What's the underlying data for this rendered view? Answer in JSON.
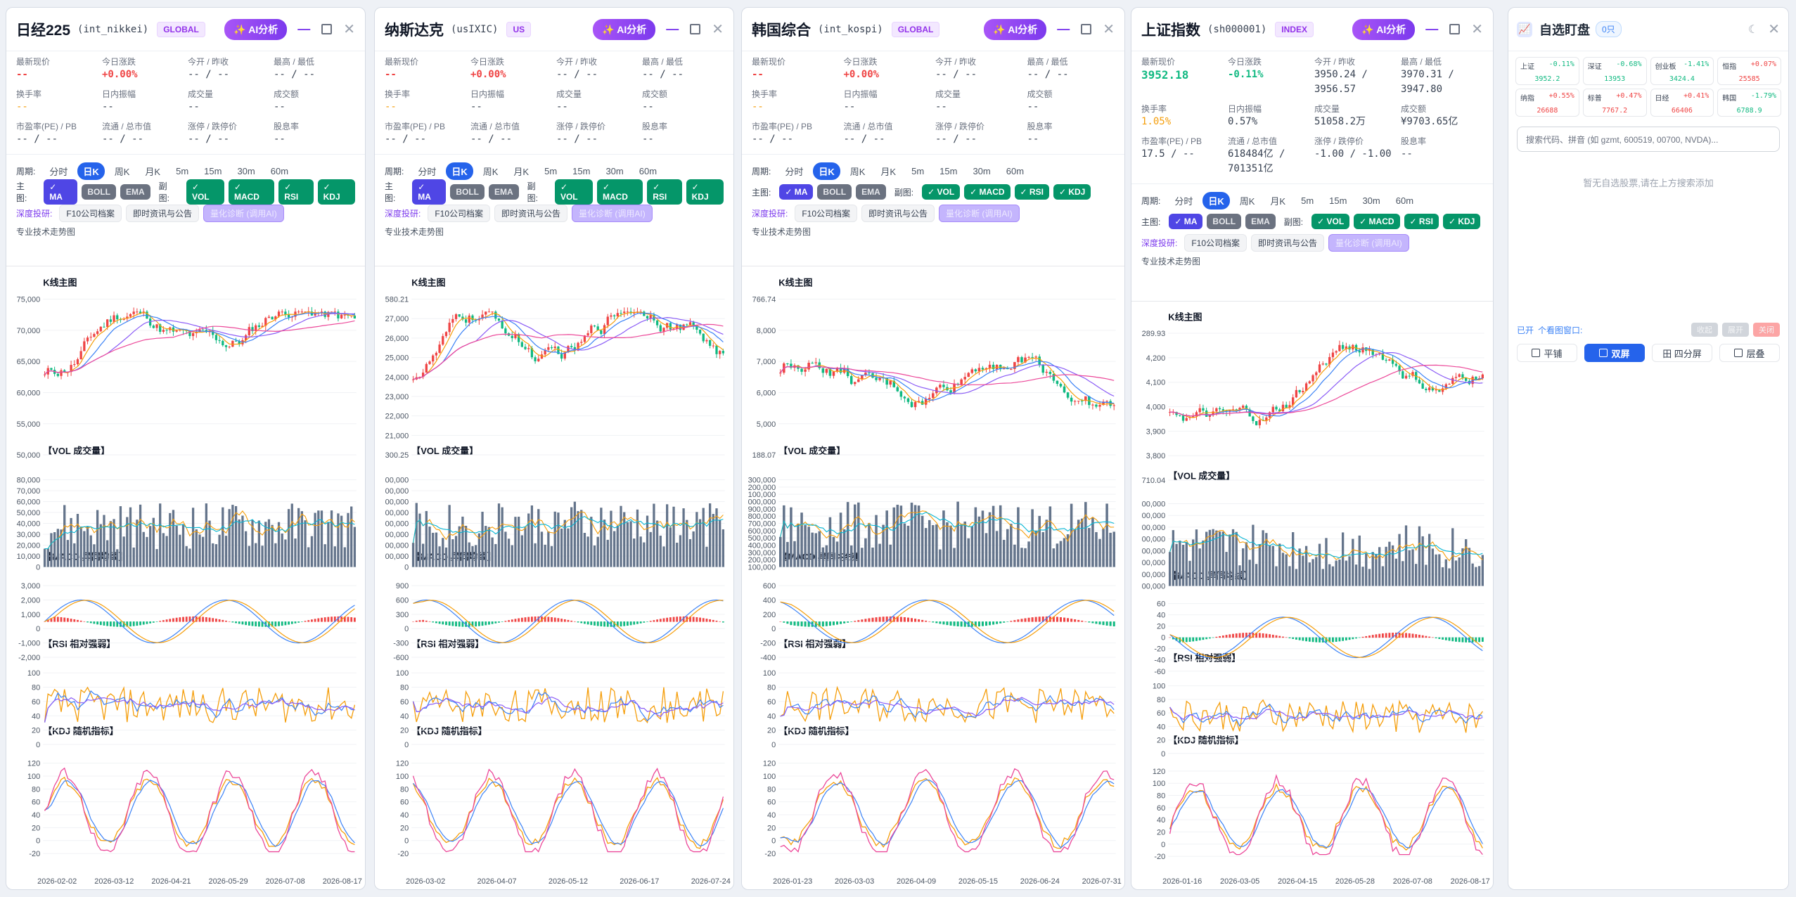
{
  "ai_label": "✨ AI分析",
  "stat_labels": [
    "最新现价",
    "今日涨跌",
    "今开 / 昨收",
    "最高 / 最低",
    "换手率",
    "日内振幅",
    "成交量",
    "成交额",
    "市盈率(PE) / PB",
    "流通 / 总市值",
    "涨停 / 跌停价",
    "股息率"
  ],
  "period_label": "周期:",
  "periods": [
    "分时",
    "日K",
    "周K",
    "月K",
    "5m",
    "15m",
    "30m",
    "60m"
  ],
  "main_label": "主图:",
  "sub_label": "副图:",
  "main_inds": [
    "✓ MA",
    "BOLL",
    "EMA"
  ],
  "sub_inds": [
    "✓ VOL",
    "✓ MACD",
    "✓ RSI",
    "✓ KDJ"
  ],
  "deep_label": "深度投研:",
  "deep_btns": [
    "F10公司档案",
    "即时资讯与公告",
    "量化诊断 (调用AI)"
  ],
  "pro_label": "专业技术走势图",
  "chart_titles": [
    "K线主图",
    "【VOL 成交量】",
    "【MACD 异同均线】",
    "【RSI 相对强弱】",
    "【KDJ 随机指标】"
  ],
  "panels": [
    {
      "title": "日经225",
      "code": "(int_nikkei)",
      "tag": "GLOBAL",
      "stats": [
        "--",
        "+0.00%",
        "-- / --",
        "-- / --",
        "--",
        "--",
        "--",
        "--",
        "-- / --",
        "-- / --",
        "-- / --",
        "--"
      ],
      "xdates": [
        "2026-02-02",
        "2026-03-12",
        "2026-04-21",
        "2026-05-29",
        "2026-07-08",
        "2026-08-17"
      ],
      "price_ticks": [
        "75,000",
        "70,000",
        "65,000",
        "60,000",
        "55,000",
        "50,000"
      ],
      "vol_ticks": [
        "80,000",
        "70,000",
        "60,000",
        "50,000",
        "40,000",
        "30,000",
        "20,000",
        "10,000",
        "0"
      ],
      "macd_ticks": [
        "3,000",
        "2,000",
        "1,000",
        "0",
        "-1,000",
        "-2,000"
      ],
      "rsi_ticks": [
        "100",
        "80",
        "60",
        "40",
        "20",
        "0"
      ],
      "kdj_ticks": [
        "120",
        "100",
        "80",
        "60",
        "40",
        "20",
        "0",
        "-20"
      ]
    },
    {
      "title": "纳斯达克",
      "code": "(usIXIC)",
      "tag": "US",
      "stats": [
        "--",
        "+0.00%",
        "-- / --",
        "-- / --",
        "--",
        "--",
        "--",
        "--",
        "-- / --",
        "-- / --",
        "-- / --",
        "--"
      ],
      "xdates": [
        "2026-03-02",
        "2026-04-07",
        "2026-05-12",
        "2026-06-17",
        "2026-07-24"
      ],
      "price_ticks": [
        "580.21",
        "27,000",
        "26,000",
        "25,000",
        "24,000",
        "23,000",
        "22,000",
        "21,000",
        "300.25"
      ],
      "vol_ticks": [
        "00,000",
        "00,000",
        "00,000",
        "00,000",
        "00,000",
        "00,000",
        "00,000",
        "00,000",
        "0"
      ],
      "macd_ticks": [
        "900",
        "600",
        "300",
        "0",
        "-300",
        "-600"
      ],
      "rsi_ticks": [
        "100",
        "80",
        "60",
        "40",
        "20",
        "0"
      ],
      "kdj_ticks": [
        "120",
        "100",
        "80",
        "60",
        "40",
        "20",
        "0",
        "-20"
      ]
    },
    {
      "title": "韩国综合",
      "code": "(int_kospi)",
      "tag": "GLOBAL",
      "stats": [
        "--",
        "+0.00%",
        "-- / --",
        "-- / --",
        "--",
        "--",
        "--",
        "--",
        "-- / --",
        "-- / --",
        "-- / --",
        "--"
      ],
      "xdates": [
        "2026-01-23",
        "2026-03-03",
        "2026-04-09",
        "2026-05-15",
        "2026-06-24",
        "2026-07-31"
      ],
      "price_ticks": [
        "766.74",
        "8,000",
        "7,000",
        "6,000",
        "5,000",
        "188.07"
      ],
      "vol_ticks": [
        "300,000",
        "200,000",
        "100,000",
        "000,000",
        "900,000",
        "800,000",
        "700,000",
        "600,000",
        "500,000",
        "400,000",
        "300,000",
        "200,000",
        "100,000"
      ],
      "macd_ticks": [
        "600",
        "400",
        "200",
        "0",
        "-200",
        "-400"
      ],
      "rsi_ticks": [
        "100",
        "80",
        "60",
        "40",
        "20",
        "0"
      ],
      "kdj_ticks": [
        "120",
        "100",
        "80",
        "60",
        "40",
        "20",
        "0",
        "-20"
      ]
    },
    {
      "title": "上证指数",
      "code": "(sh000001)",
      "tag": "INDEX",
      "stats": [
        "3952.18",
        "-0.11%",
        "3950.24 / 3956.57",
        "3970.31 / 3947.80",
        "1.05%",
        "0.57%",
        "51058.2万",
        "¥9703.65亿",
        "17.5 / --",
        "618484亿 / 701351亿",
        "-1.00 / -1.00",
        "--"
      ],
      "xdates": [
        "2026-01-16",
        "2026-03-05",
        "2026-04-15",
        "2026-05-28",
        "2026-07-08",
        "2026-08-17"
      ],
      "price_ticks": [
        "289.93",
        "4,200",
        "4,100",
        "4,000",
        "3,900",
        "3,800",
        "710.04"
      ],
      "vol_ticks": [
        "00,000",
        "00,000",
        "00,000",
        "00,000",
        "00,000",
        "00,000",
        "00,000",
        "00,000"
      ],
      "macd_ticks": [
        "60",
        "40",
        "20",
        "0",
        "-20",
        "-40",
        "-60"
      ],
      "rsi_ticks": [
        "100",
        "80",
        "60",
        "40",
        "20",
        "0"
      ],
      "kdj_ticks": [
        "120",
        "100",
        "80",
        "60",
        "40",
        "20",
        "0",
        "-20"
      ]
    }
  ],
  "watchlist": {
    "title": "自选盯盘",
    "count": "0只",
    "mini": [
      {
        "name": "上证",
        "pct": "-0.11%",
        "price": "3952.2",
        "dir": "dn"
      },
      {
        "name": "深证",
        "pct": "-0.68%",
        "price": "13953",
        "dir": "dn"
      },
      {
        "name": "创业板",
        "pct": "-1.41%",
        "price": "3424.4",
        "dir": "dn"
      },
      {
        "name": "恒指",
        "pct": "+0.07%",
        "price": "25585",
        "dir": "up"
      },
      {
        "name": "纳指",
        "pct": "+0.55%",
        "price": "26688",
        "dir": "up"
      },
      {
        "name": "标普",
        "pct": "+0.47%",
        "price": "7767.2",
        "dir": "up"
      },
      {
        "name": "日经",
        "pct": "+0.41%",
        "price": "66406",
        "dir": "up"
      },
      {
        "name": "韩国",
        "pct": "-1.79%",
        "price": "6788.9",
        "dir": "dn"
      }
    ],
    "search_placeholder": "搜索代码、拼音 (如 gzmt, 600519, 00700, NVDA)...",
    "empty": "暂无自选股票,请在上方搜索添加",
    "opened_label": "已开",
    "opened_count": "个看图窗口:",
    "side_btns": [
      "收起",
      "展开",
      "关闭"
    ],
    "layouts": [
      "平铺",
      "双屏",
      "田 四分屏",
      "层叠"
    ]
  }
}
